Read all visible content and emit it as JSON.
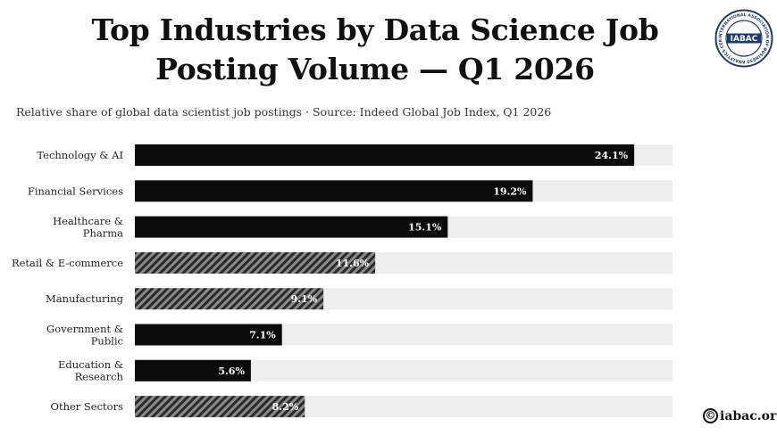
{
  "header": {
    "title": "Top Industries by Data Science Job Posting Volume — Q1 2026",
    "subtitle": "Relative share of global data scientist job postings · Source: Indeed Global Job Index, Q1 2026",
    "logo_text": "IABAC",
    "logo_ring_text": "INTERNATIONAL ASSOCIATION OF BUSINESS ANALYTICS CERTIFICATION"
  },
  "footer": {
    "brand": "iabac.org",
    "symbol": "©"
  },
  "colors": {
    "bar_solid": "#0b0b0b",
    "track": "#eeeeee",
    "hatch_dark": "#2a2a2a",
    "hatch_light": "#8a8a8a",
    "label_text": "#ffffff"
  },
  "chart_data": {
    "type": "bar",
    "orientation": "horizontal",
    "categories": [
      [
        "Technology & AI"
      ],
      [
        "Financial Services"
      ],
      [
        "Healthcare &",
        "Pharma"
      ],
      [
        "Retail & E-commerce"
      ],
      [
        "Manufacturing"
      ],
      [
        "Government &",
        "Public"
      ],
      [
        "Education &",
        "Research"
      ],
      [
        "Other Sectors"
      ]
    ],
    "values": [
      24.1,
      19.2,
      15.1,
      11.6,
      9.1,
      7.1,
      5.6,
      8.2
    ],
    "value_labels": [
      "24.1%",
      "19.2%",
      "15.1%",
      "11.6%",
      "9.1%",
      "7.1%",
      "5.6%",
      "8.2%"
    ],
    "styles": [
      "solid",
      "solid",
      "solid",
      "hatched",
      "hatched",
      "solid",
      "solid",
      "hatched"
    ],
    "xlim": [
      0,
      25
    ],
    "unit": "%",
    "grid": false,
    "legend": "none"
  }
}
